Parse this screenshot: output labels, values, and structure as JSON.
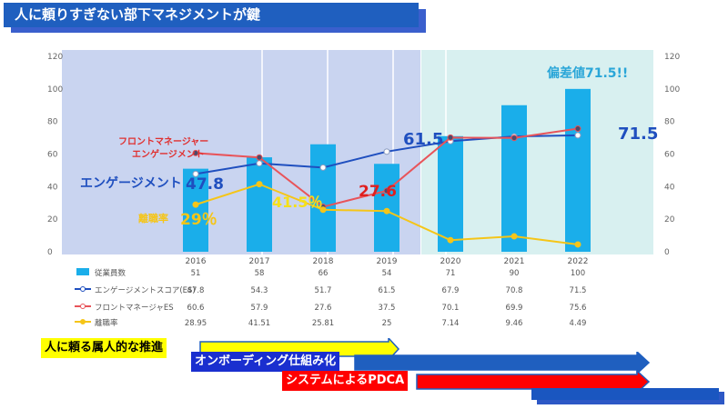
{
  "header": {
    "title": "人に頼りすぎない部下マネジメントが鍵"
  },
  "colors": {
    "bar": "#1aaeea",
    "engagement": "#1f4fbf",
    "frontline": "#e8545a",
    "turnover": "#f5c518",
    "shade_left": "#c9d4f0",
    "shade_right": "#d8f0f0"
  },
  "callouts": {
    "frontline_title_line1": "フロントマネージャー",
    "frontline_title_line2": "エンゲージメント",
    "engagement_label": "エンゲージメント",
    "engagement_value": "47.8",
    "turnover_label": "離職率",
    "turnover_value": "29％",
    "turnover_2017": "41.5％",
    "frontline_2018": "27.6",
    "engagement_2019": "61.5",
    "engagement_2022": "71.5",
    "hensachi": "偏差値71.5!!"
  },
  "chart_data": {
    "type": "bar",
    "categories": [
      "2016",
      "2017",
      "2018",
      "2019",
      "2020",
      "2021",
      "2022"
    ],
    "series": [
      {
        "name": "従業員数",
        "kind": "bar",
        "values": [
          51,
          58,
          66,
          54,
          71,
          90,
          100
        ]
      },
      {
        "name": "エンゲージメントスコア(ES)",
        "kind": "line",
        "values": [
          47.8,
          54.3,
          51.7,
          61.5,
          67.9,
          70.8,
          71.5
        ]
      },
      {
        "name": "フロントマネージャES",
        "kind": "line",
        "values": [
          60.6,
          57.9,
          27.6,
          37.5,
          70.1,
          69.9,
          75.6
        ]
      },
      {
        "name": "離職率",
        "kind": "line",
        "values": [
          28.95,
          41.51,
          25.81,
          25,
          7.14,
          9.46,
          4.49
        ]
      }
    ],
    "table_rows": [
      [
        "51",
        "58",
        "66",
        "54",
        "71",
        "90",
        "100"
      ],
      [
        "47.8",
        "54.3",
        "51.7",
        "61.5",
        "67.9",
        "70.8",
        "71.5"
      ],
      [
        "60.6",
        "57.9",
        "27.6",
        "37.5",
        "70.1",
        "69.9",
        "75.6"
      ],
      [
        "28.95",
        "41.51",
        "25.81",
        "25",
        "7.14",
        "9.46",
        "4.49"
      ]
    ],
    "ylim": [
      0,
      120
    ],
    "yticks": [
      "0",
      "20",
      "40",
      "60",
      "80",
      "100",
      "120"
    ]
  },
  "phases": [
    {
      "label": "人に頼る属人的な推進",
      "label_bg": "#ffff00",
      "label_color": "#000000",
      "arrow_color": "#ffff00",
      "arrow_border": "#1f5fbf"
    },
    {
      "label": "オンボーディング仕組み化",
      "label_bg": "#1a2fcf",
      "label_color": "#ffffff",
      "arrow_color": "#1f5fbf",
      "arrow_border": "#1f5fbf"
    },
    {
      "label": "システムによるPDCA",
      "label_bg": "#ff0000",
      "label_color": "#ffffff",
      "arrow_color": "#ff0000",
      "arrow_border": "#1f5fbf"
    }
  ]
}
